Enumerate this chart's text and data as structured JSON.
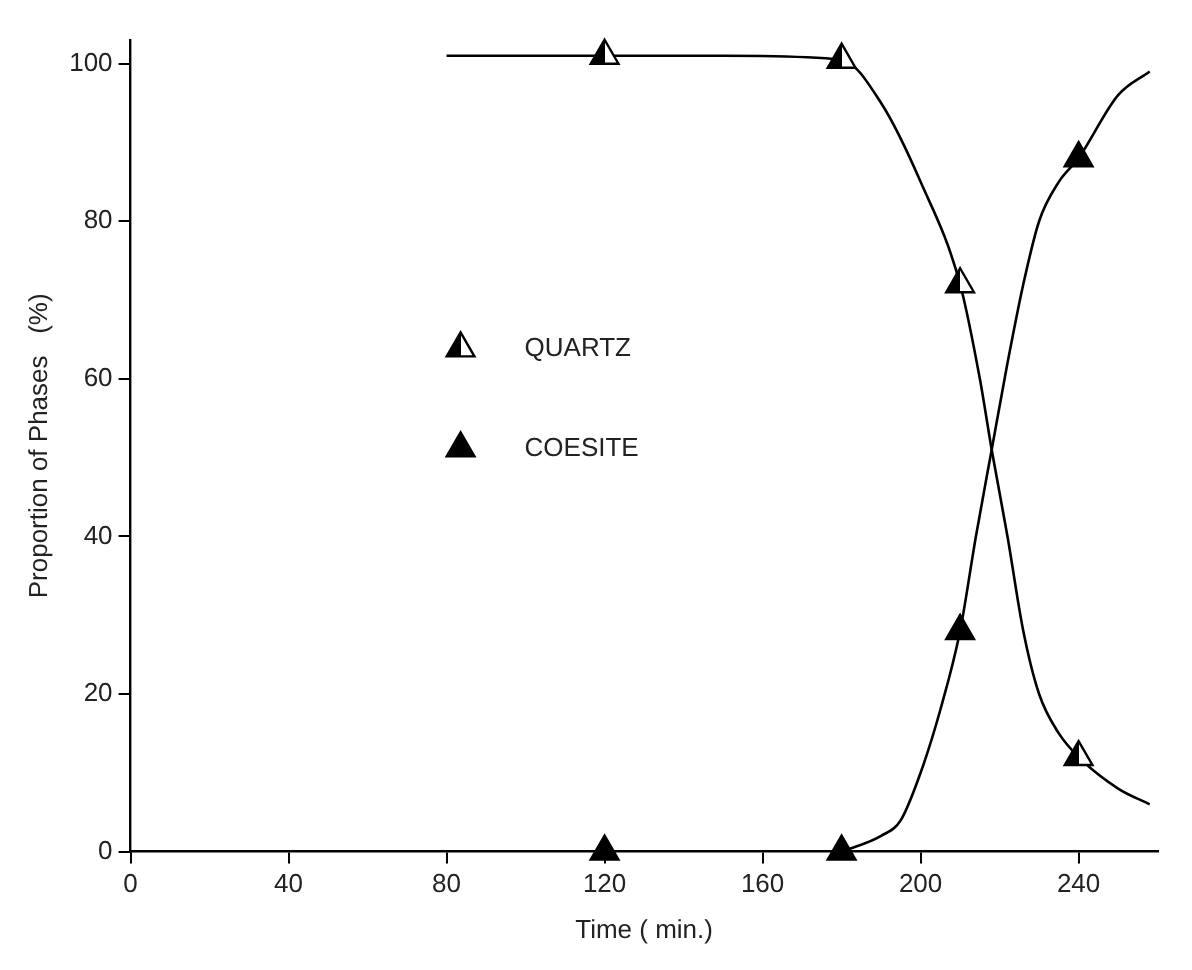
{
  "chart_data": {
    "type": "line",
    "xlabel": "Time ( min.)",
    "ylabel": "Proportion of Phases   (%)",
    "xlim": [
      0,
      260
    ],
    "xticks": [
      0,
      40,
      80,
      120,
      160,
      200,
      240
    ],
    "ylim": [
      0,
      103
    ],
    "yticks": [
      0,
      20,
      40,
      60,
      80,
      100
    ],
    "grid": false,
    "legend": "left",
    "line_style": "solid",
    "series": [
      {
        "name": "QUARTZ",
        "type": "scatter",
        "marker": "triangle",
        "color": "#000000",
        "x": [
          120,
          180,
          210,
          240
        ],
        "values": [
          101,
          100.5,
          72,
          12
        ]
      },
      {
        "name": "COESITE",
        "type": "scatter",
        "marker": "triangle",
        "color": "#000000",
        "x": [
          120,
          180,
          210,
          240
        ],
        "values": [
          0,
          0,
          28,
          88
        ]
      },
      {
        "color": "#000000",
        "x": [
          80,
          120,
          150,
          180,
          190,
          200,
          210,
          215,
          218,
          222,
          226,
          230,
          235,
          240,
          250,
          258
        ],
        "values": [
          101,
          101,
          101,
          100.5,
          95,
          85,
          72,
          60,
          51,
          40,
          28,
          20,
          15,
          12,
          8,
          6
        ]
      },
      {
        "color": "#000000",
        "x": [
          180,
          190,
          195,
          200,
          205,
          210,
          214,
          218,
          222,
          226,
          230,
          235,
          240,
          250,
          258
        ],
        "values": [
          0,
          2,
          4,
          10,
          18,
          28,
          40,
          51,
          62,
          72,
          80,
          85,
          88,
          96,
          99
        ]
      }
    ]
  }
}
